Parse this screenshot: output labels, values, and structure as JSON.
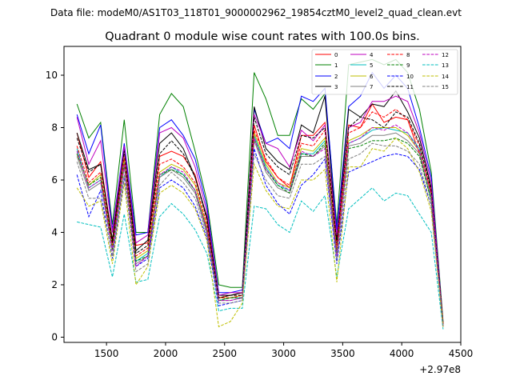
{
  "chart_data": {
    "type": "line",
    "suptitle": "Data file: modeM0/AS1T03_118T01_9000002962_19854cztM0_level2_quad_clean.evt",
    "title": "Quadrant 0 module wise count rates with 100.0s bins.",
    "xlabel": "",
    "ylabel": "",
    "x_offset_label": "+2.97e8",
    "xlim": [
      1140,
      4500
    ],
    "ylim": [
      -0.2,
      11.1
    ],
    "xticks": [
      1500,
      2000,
      2500,
      3000,
      3500,
      4000,
      4500
    ],
    "yticks": [
      0,
      2,
      4,
      6,
      8,
      10
    ],
    "legend_position": "top-right",
    "x": [
      1250,
      1350,
      1450,
      1550,
      1650,
      1750,
      1850,
      1950,
      2050,
      2150,
      2250,
      2350,
      2450,
      2550,
      2650,
      2750,
      2850,
      2950,
      3050,
      3150,
      3250,
      3350,
      3450,
      3550,
      3650,
      3750,
      3850,
      3950,
      4050,
      4150,
      4250,
      4350
    ],
    "series": [
      {
        "name": "0",
        "color": "#ff0000",
        "dash": "solid",
        "values": [
          7.8,
          6.1,
          6.7,
          3.7,
          7.3,
          3.5,
          3.6,
          6.9,
          7.1,
          6.9,
          6.2,
          4.5,
          1.5,
          1.6,
          1.7,
          8.1,
          6.7,
          6.1,
          5.7,
          7.7,
          7.7,
          8.2,
          3.6,
          8.1,
          8.0,
          8.9,
          8.2,
          8.4,
          8.3,
          7.0,
          5.5,
          0.5
        ]
      },
      {
        "name": "1",
        "color": "#008000",
        "dash": "solid",
        "values": [
          8.9,
          7.6,
          8.2,
          4.3,
          8.3,
          4.0,
          4.0,
          8.5,
          9.3,
          8.8,
          7.1,
          5.2,
          2.0,
          1.9,
          1.9,
          10.1,
          9.1,
          7.7,
          7.7,
          9.1,
          8.7,
          9.3,
          4.3,
          10.4,
          10.5,
          10.6,
          10.4,
          10.6,
          10.1,
          8.7,
          6.3,
          0.6
        ]
      },
      {
        "name": "2",
        "color": "#0000ff",
        "dash": "solid",
        "values": [
          8.5,
          7.0,
          8.1,
          4.1,
          7.4,
          3.9,
          4.0,
          8.0,
          8.3,
          7.7,
          6.8,
          5.0,
          1.7,
          1.7,
          1.8,
          8.7,
          7.4,
          7.6,
          7.2,
          9.2,
          9.0,
          9.5,
          4.1,
          8.8,
          9.2,
          10.1,
          9.5,
          10.0,
          9.5,
          8.0,
          6.1,
          0.5
        ]
      },
      {
        "name": "3",
        "color": "#000000",
        "dash": "solid",
        "values": [
          7.8,
          6.4,
          6.6,
          3.7,
          7.2,
          3.3,
          3.7,
          7.4,
          7.8,
          7.2,
          6.1,
          4.6,
          1.6,
          1.6,
          1.7,
          8.8,
          7.2,
          6.7,
          6.4,
          8.1,
          7.8,
          9.2,
          3.7,
          8.7,
          8.4,
          8.9,
          8.8,
          9.4,
          8.6,
          7.6,
          5.7,
          0.5
        ]
      },
      {
        "name": "4",
        "color": "#bf00bf",
        "dash": "solid",
        "values": [
          8.4,
          6.6,
          7.5,
          4.0,
          7.3,
          3.6,
          3.9,
          7.8,
          8.0,
          7.6,
          6.5,
          4.8,
          1.6,
          1.7,
          1.7,
          8.5,
          7.4,
          7.2,
          6.5,
          7.9,
          7.5,
          8.1,
          3.9,
          8.0,
          8.2,
          9.0,
          9.0,
          9.2,
          9.0,
          7.8,
          5.9,
          0.5
        ]
      },
      {
        "name": "5",
        "color": "#00bfbf",
        "dash": "solid",
        "values": [
          7.2,
          5.7,
          6.0,
          3.4,
          6.7,
          2.9,
          3.2,
          6.1,
          6.5,
          6.2,
          5.6,
          4.1,
          1.4,
          1.5,
          1.5,
          7.7,
          6.5,
          5.8,
          5.6,
          7.0,
          7.0,
          7.5,
          3.2,
          7.4,
          7.6,
          7.9,
          8.0,
          7.9,
          7.8,
          7.2,
          5.3,
          0.4
        ]
      },
      {
        "name": "6",
        "color": "#bfbf00",
        "dash": "solid",
        "values": [
          7.0,
          5.8,
          6.2,
          3.5,
          6.8,
          3.0,
          3.3,
          6.3,
          6.6,
          6.4,
          5.8,
          4.2,
          1.5,
          1.5,
          1.6,
          7.8,
          6.6,
          5.9,
          5.7,
          7.2,
          7.1,
          7.6,
          3.3,
          7.5,
          7.7,
          8.0,
          8.0,
          8.0,
          7.7,
          7.1,
          5.4,
          0.5
        ]
      },
      {
        "name": "7",
        "color": "#808080",
        "dash": "solid",
        "values": [
          6.9,
          5.6,
          5.9,
          3.3,
          6.5,
          2.8,
          3.1,
          6.1,
          6.4,
          6.1,
          5.5,
          4.0,
          1.4,
          1.4,
          1.5,
          7.5,
          6.3,
          5.7,
          5.5,
          6.9,
          6.9,
          7.3,
          3.1,
          7.3,
          7.4,
          7.7,
          7.7,
          7.8,
          7.5,
          7.0,
          5.2,
          0.4
        ]
      },
      {
        "name": "8",
        "color": "#ff0000",
        "dash": "dashed",
        "values": [
          7.3,
          5.9,
          6.3,
          3.5,
          6.9,
          3.1,
          3.4,
          6.6,
          6.8,
          6.5,
          5.9,
          4.3,
          1.5,
          1.5,
          1.6,
          7.9,
          6.8,
          6.1,
          5.8,
          7.4,
          7.3,
          7.9,
          3.4,
          7.8,
          8.0,
          8.6,
          8.4,
          8.7,
          8.3,
          7.3,
          5.5,
          0.5
        ]
      },
      {
        "name": "9",
        "color": "#008000",
        "dash": "dashed",
        "values": [
          7.0,
          5.8,
          6.1,
          3.3,
          6.6,
          2.9,
          3.1,
          6.2,
          6.4,
          6.2,
          5.6,
          4.1,
          1.4,
          1.5,
          1.5,
          7.6,
          6.4,
          5.8,
          5.5,
          7.0,
          6.9,
          7.4,
          3.2,
          7.2,
          7.3,
          7.5,
          7.5,
          7.6,
          7.4,
          6.9,
          5.2,
          0.4
        ]
      },
      {
        "name": "10",
        "color": "#0000ff",
        "dash": "dashed",
        "values": [
          6.2,
          4.6,
          5.6,
          3.0,
          6.1,
          2.7,
          3.0,
          5.7,
          6.0,
          5.7,
          5.0,
          3.8,
          1.2,
          1.3,
          1.4,
          7.2,
          5.8,
          5.1,
          4.7,
          5.8,
          6.2,
          6.8,
          2.8,
          6.3,
          6.5,
          6.7,
          6.9,
          7.0,
          6.9,
          6.4,
          5.0,
          0.4
        ]
      },
      {
        "name": "11",
        "color": "#000000",
        "dash": "dashed",
        "values": [
          7.6,
          6.3,
          6.6,
          3.6,
          7.1,
          3.2,
          3.5,
          7.0,
          7.5,
          7.0,
          6.1,
          4.5,
          1.5,
          1.6,
          1.6,
          8.4,
          7.0,
          6.5,
          6.2,
          7.7,
          7.6,
          8.0,
          3.6,
          8.0,
          8.4,
          8.3,
          8.0,
          8.6,
          8.4,
          7.4,
          5.6,
          0.5
        ]
      },
      {
        "name": "12",
        "color": "#bf00bf",
        "dash": "dashed",
        "values": [
          7.1,
          5.7,
          6.0,
          3.3,
          6.6,
          2.7,
          3.1,
          6.2,
          6.5,
          6.3,
          5.6,
          4.1,
          1.4,
          1.4,
          1.5,
          7.6,
          6.4,
          5.9,
          5.6,
          7.1,
          6.9,
          7.2,
          3.1,
          7.4,
          7.6,
          8.0,
          7.9,
          8.1,
          7.8,
          7.1,
          5.4,
          0.4
        ]
      },
      {
        "name": "13",
        "color": "#00bfbf",
        "dash": "dashed",
        "values": [
          4.4,
          4.3,
          4.2,
          2.3,
          4.7,
          2.1,
          2.2,
          4.6,
          5.1,
          4.7,
          4.1,
          3.2,
          1.0,
          1.1,
          1.1,
          5.0,
          4.9,
          4.3,
          4.0,
          5.2,
          4.8,
          5.4,
          2.3,
          4.9,
          5.3,
          5.7,
          5.2,
          5.5,
          5.4,
          4.7,
          4.0,
          0.3
        ]
      },
      {
        "name": "14",
        "color": "#bfbf00",
        "dash": "dashed",
        "values": [
          5.7,
          5.0,
          5.2,
          2.8,
          5.9,
          2.0,
          2.7,
          5.5,
          5.8,
          5.5,
          4.9,
          3.7,
          0.4,
          0.6,
          1.3,
          6.6,
          5.6,
          5.0,
          4.9,
          6.0,
          6.0,
          6.4,
          2.1,
          6.5,
          6.5,
          7.2,
          7.1,
          7.6,
          7.2,
          6.3,
          4.8,
          0.4
        ]
      },
      {
        "name": "15",
        "color": "#808080",
        "dash": "dashed",
        "values": [
          6.7,
          5.3,
          5.3,
          3.1,
          6.2,
          2.5,
          2.8,
          5.8,
          6.3,
          5.9,
          5.3,
          3.9,
          1.3,
          1.3,
          1.4,
          7.0,
          6.0,
          5.4,
          5.3,
          6.6,
          6.6,
          6.9,
          2.9,
          6.8,
          7.0,
          7.4,
          7.3,
          7.3,
          7.1,
          6.6,
          5.0,
          0.4
        ]
      }
    ]
  }
}
